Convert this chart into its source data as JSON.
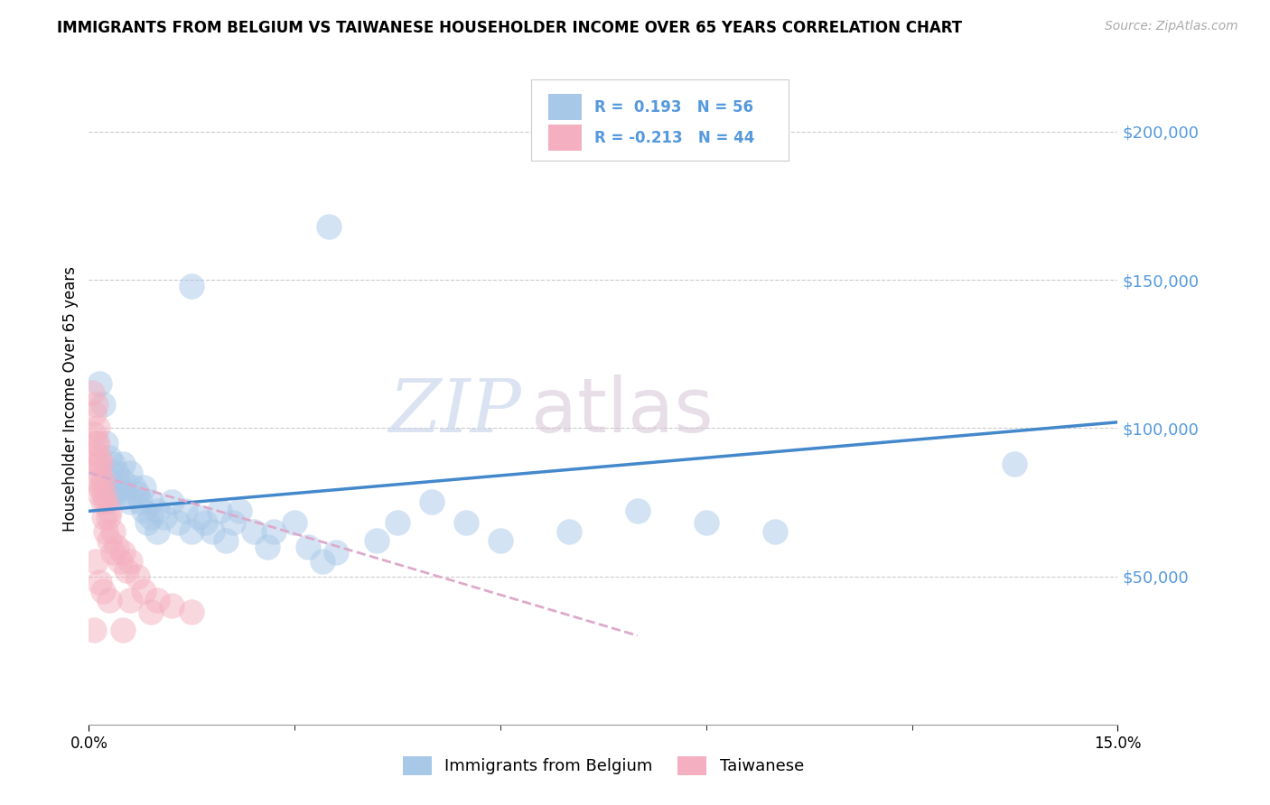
{
  "title": "IMMIGRANTS FROM BELGIUM VS TAIWANESE HOUSEHOLDER INCOME OVER 65 YEARS CORRELATION CHART",
  "source": "Source: ZipAtlas.com",
  "ylabel": "Householder Income Over 65 years",
  "xmin": 0.0,
  "xmax": 15.0,
  "ymin": 0,
  "ymax": 220000,
  "yticks": [
    0,
    50000,
    100000,
    150000,
    200000
  ],
  "ytick_labels": [
    "",
    "$50,000",
    "$100,000",
    "$150,000",
    "$200,000"
  ],
  "series1_label": "Immigrants from Belgium",
  "series1_R": 0.193,
  "series1_N": 56,
  "series1_color": "#a8c8e8",
  "series2_label": "Taiwanese",
  "series2_R": -0.213,
  "series2_N": 44,
  "series2_color": "#f4b0c0",
  "watermark_left": "ZIP",
  "watermark_right": "atlas",
  "background_color": "#ffffff",
  "title_fontsize": 12,
  "tick_label_color": "#5599dd",
  "trend1_color": "#4488cc",
  "trend2_color": "#ddaacc",
  "grid_color": "#cccccc",
  "blue_dots": [
    [
      0.15,
      115000
    ],
    [
      0.2,
      108000
    ],
    [
      0.25,
      95000
    ],
    [
      0.3,
      90000
    ],
    [
      0.3,
      82000
    ],
    [
      0.35,
      88000
    ],
    [
      0.35,
      78000
    ],
    [
      0.4,
      85000
    ],
    [
      0.4,
      78000
    ],
    [
      0.45,
      80000
    ],
    [
      0.5,
      88000
    ],
    [
      0.5,
      82000
    ],
    [
      0.55,
      78000
    ],
    [
      0.6,
      85000
    ],
    [
      0.6,
      75000
    ],
    [
      0.65,
      80000
    ],
    [
      0.7,
      78000
    ],
    [
      0.75,
      75000
    ],
    [
      0.8,
      80000
    ],
    [
      0.8,
      72000
    ],
    [
      0.85,
      68000
    ],
    [
      0.9,
      75000
    ],
    [
      0.9,
      70000
    ],
    [
      1.0,
      72000
    ],
    [
      1.0,
      65000
    ],
    [
      1.1,
      70000
    ],
    [
      1.2,
      75000
    ],
    [
      1.3,
      68000
    ],
    [
      1.4,
      72000
    ],
    [
      1.5,
      65000
    ],
    [
      1.6,
      70000
    ],
    [
      1.7,
      68000
    ],
    [
      1.8,
      65000
    ],
    [
      1.9,
      72000
    ],
    [
      2.0,
      62000
    ],
    [
      2.1,
      68000
    ],
    [
      2.2,
      72000
    ],
    [
      2.4,
      65000
    ],
    [
      2.6,
      60000
    ],
    [
      2.7,
      65000
    ],
    [
      3.0,
      68000
    ],
    [
      3.2,
      60000
    ],
    [
      3.4,
      55000
    ],
    [
      3.6,
      58000
    ],
    [
      4.2,
      62000
    ],
    [
      4.5,
      68000
    ],
    [
      5.0,
      75000
    ],
    [
      5.5,
      68000
    ],
    [
      6.0,
      62000
    ],
    [
      7.0,
      65000
    ],
    [
      8.0,
      72000
    ],
    [
      9.0,
      68000
    ],
    [
      10.0,
      65000
    ],
    [
      13.5,
      88000
    ],
    [
      1.5,
      148000
    ],
    [
      3.5,
      168000
    ]
  ],
  "pink_dots": [
    [
      0.05,
      112000
    ],
    [
      0.07,
      105000
    ],
    [
      0.08,
      98000
    ],
    [
      0.09,
      92000
    ],
    [
      0.1,
      108000
    ],
    [
      0.1,
      95000
    ],
    [
      0.12,
      100000
    ],
    [
      0.12,
      88000
    ],
    [
      0.13,
      95000
    ],
    [
      0.13,
      82000
    ],
    [
      0.15,
      90000
    ],
    [
      0.15,
      85000
    ],
    [
      0.15,
      78000
    ],
    [
      0.17,
      88000
    ],
    [
      0.17,
      80000
    ],
    [
      0.2,
      82000
    ],
    [
      0.2,
      75000
    ],
    [
      0.22,
      78000
    ],
    [
      0.22,
      70000
    ],
    [
      0.25,
      75000
    ],
    [
      0.25,
      65000
    ],
    [
      0.28,
      70000
    ],
    [
      0.3,
      72000
    ],
    [
      0.3,
      62000
    ],
    [
      0.35,
      65000
    ],
    [
      0.35,
      58000
    ],
    [
      0.4,
      60000
    ],
    [
      0.45,
      55000
    ],
    [
      0.5,
      58000
    ],
    [
      0.55,
      52000
    ],
    [
      0.6,
      55000
    ],
    [
      0.7,
      50000
    ],
    [
      0.8,
      45000
    ],
    [
      1.0,
      42000
    ],
    [
      1.2,
      40000
    ],
    [
      1.5,
      38000
    ],
    [
      0.1,
      55000
    ],
    [
      0.15,
      48000
    ],
    [
      0.2,
      45000
    ],
    [
      0.3,
      42000
    ],
    [
      0.6,
      42000
    ],
    [
      0.9,
      38000
    ],
    [
      0.5,
      32000
    ],
    [
      0.08,
      32000
    ]
  ],
  "trend1_x": [
    0.0,
    15.0
  ],
  "trend1_y": [
    72000,
    102000
  ],
  "trend2_x": [
    0.0,
    8.0
  ],
  "trend2_y": [
    85000,
    30000
  ]
}
